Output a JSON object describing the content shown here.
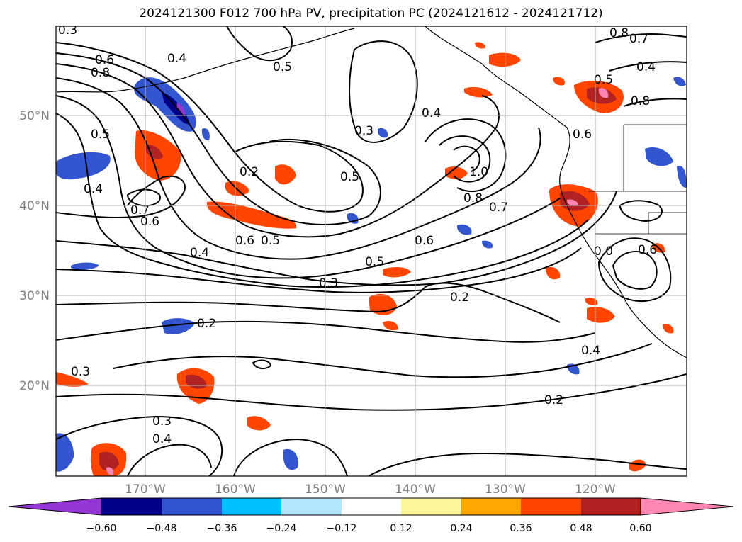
{
  "title": "2024121300 F012 700 hPa PV, precipitation PC (2024121612 - 2024121712)",
  "map": {
    "lat_labels": [
      "50°N",
      "40°N",
      "30°N",
      "20°N"
    ],
    "lon_labels": [
      "170°W",
      "160°W",
      "150°W",
      "140°W",
      "130°W",
      "120°W"
    ],
    "contour_labels": [
      "0.3",
      "0.6",
      "0.8",
      "0.4",
      "0.5",
      "0.4",
      "0.5",
      "0.7",
      "0.6",
      "0.6",
      "0.5",
      "0.6",
      "0.4",
      "0.5",
      "0.2",
      "0.3",
      "0.5",
      "1.0",
      "0.8",
      "0.4",
      "0.7",
      "0.6",
      "0.5",
      "0.3",
      "0.2",
      "0.2",
      "0.4",
      "0.2",
      "0.3",
      "0.4",
      "0.3",
      "0.8",
      "0.7",
      "0.4",
      "0.8",
      "0.6",
      "0.0"
    ]
  },
  "colorbar": {
    "colors": [
      "#9435d6",
      "#00008b",
      "#3355d0",
      "#00bfff",
      "#b3e5fc",
      "#ffffff",
      "#fff59d",
      "#ffa500",
      "#ff4500",
      "#b22222",
      "#ff85b3"
    ],
    "tick_labels": [
      "−0.60",
      "−0.48",
      "−0.36",
      "−0.24",
      "−0.12",
      "0.12",
      "0.24",
      "0.36",
      "0.48",
      "0.60"
    ]
  }
}
